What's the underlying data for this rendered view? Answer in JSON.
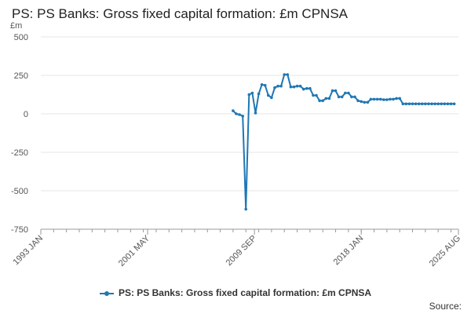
{
  "chart_data": {
    "type": "line",
    "title": "PS: PS Banks: Gross fixed capital formation: £m CPNSA",
    "ylabel": "£m",
    "ylim": [
      -750,
      500
    ],
    "yticks": [
      500,
      250,
      0,
      -250,
      -500,
      -750
    ],
    "xlim": [
      1993.0,
      2025.583
    ],
    "xticks": [
      {
        "label": "1993 JAN",
        "value": 1993.0
      },
      {
        "label": "2001 MAY",
        "value": 2001.333
      },
      {
        "label": "2009 SEP",
        "value": 2009.667
      },
      {
        "label": "2018 JAN",
        "value": 2018.0
      },
      {
        "label": "2025 AUG",
        "value": 2025.583
      }
    ],
    "grid": true,
    "legend_position": "bottom",
    "series": [
      {
        "name": "PS: PS Banks: Gross fixed capital formation: £m CPNSA",
        "color": "#1f77b4",
        "x": [
          2008.0,
          2008.25,
          2008.5,
          2008.75,
          2009.0,
          2009.25,
          2009.5,
          2009.75,
          2010.0,
          2010.25,
          2010.5,
          2010.75,
          2011.0,
          2011.25,
          2011.5,
          2011.75,
          2012.0,
          2012.25,
          2012.5,
          2012.75,
          2013.0,
          2013.25,
          2013.5,
          2013.75,
          2014.0,
          2014.25,
          2014.5,
          2014.75,
          2015.0,
          2015.25,
          2015.5,
          2015.75,
          2016.0,
          2016.25,
          2016.5,
          2016.75,
          2017.0,
          2017.25,
          2017.5,
          2017.75,
          2018.0,
          2018.25,
          2018.5,
          2018.75,
          2019.0,
          2019.25,
          2019.5,
          2019.75,
          2020.0,
          2020.25,
          2020.5,
          2020.75,
          2021.0,
          2021.25,
          2021.5,
          2021.75,
          2022.0,
          2022.25,
          2022.5,
          2022.75,
          2023.0,
          2023.25,
          2023.5,
          2023.75,
          2024.0,
          2024.25,
          2024.5,
          2024.75,
          2025.0,
          2025.25
        ],
        "values": [
          20,
          0,
          -5,
          -15,
          -620,
          125,
          135,
          5,
          130,
          190,
          185,
          120,
          105,
          170,
          180,
          180,
          255,
          255,
          175,
          175,
          180,
          180,
          160,
          165,
          165,
          120,
          120,
          85,
          85,
          100,
          100,
          150,
          150,
          110,
          110,
          135,
          135,
          110,
          110,
          85,
          80,
          75,
          75,
          95,
          95,
          95,
          95,
          92,
          92,
          95,
          95,
          100,
          100,
          65,
          65,
          65,
          65,
          65,
          65,
          65,
          65,
          65,
          65,
          65,
          65,
          65,
          65,
          65,
          65,
          65
        ]
      }
    ]
  },
  "legend": {
    "label": "PS: PS Banks: Gross fixed capital formation: £m CPNSA"
  },
  "source_label": "Source:"
}
